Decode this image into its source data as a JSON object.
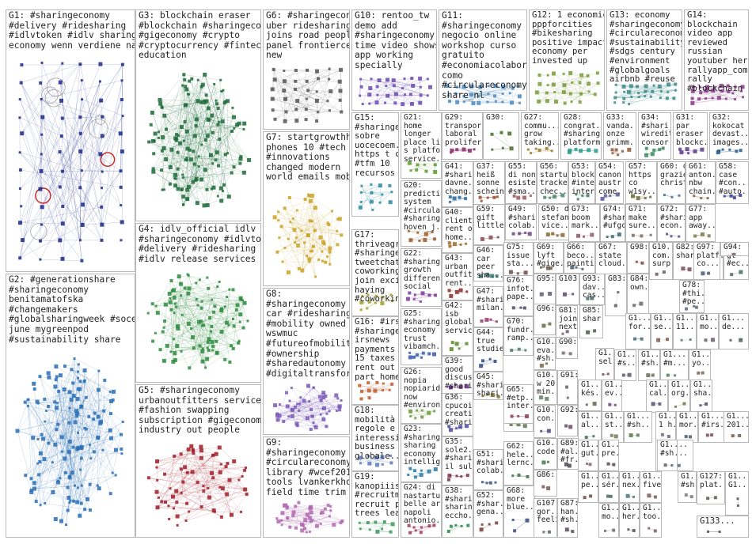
{
  "title": "",
  "groups": [
    {
      "id": "G1",
      "label": "G1: #sharingeconomy\n#delivery #ridesharing\n#idlvtoken #idlv sharing\neconomy wenn verdiene nach",
      "color": "#1a2a8a",
      "nodes": 70,
      "circles": true
    },
    {
      "id": "G2",
      "label": "G2: #generationshare\n#sharingeconomy\nbenitamatofska\n#changemakers\n#globalsharingweek #socent\njune mygreenpod\n#sustainability share",
      "color": "#2a6fb5",
      "nodes": 150,
      "cluster": true
    },
    {
      "id": "G3",
      "label": "G3: blockchain eraser\n#blockchain #sharingeconomy\n#gigeconomy #crypto\n#cryptocurrency #fintech #tech\neducation",
      "color": "#1e6b3a",
      "nodes": 150,
      "cluster": true
    },
    {
      "id": "G4",
      "label": "G4: idlv_official idlv\n#sharingeconomy #idlvtoken\n#delivery #ridesharing project\n#idlv release services",
      "color": "#2e8b3e",
      "nodes": 110,
      "cluster": true
    },
    {
      "id": "G5",
      "label": "G5: #sharingeconomy\nurbanoutfitters service\n#fashion swapping\nsubscription #gigeconomy\nindustry out people",
      "color": "#a01e2a",
      "nodes": 70,
      "cluster": true
    },
    {
      "id": "G6",
      "label": "G6: #sharingeconomy bc\nuber ridesharing\njoins road people\npanel frontiercentre\nnew",
      "color": "#555555",
      "nodes": 40
    },
    {
      "id": "G7",
      "label": "G7: startgrowthhack\nphones 10 #tech\n#innovations\nchanged modern\nworld emails mobile",
      "color": "#c9a227",
      "nodes": 60,
      "cluster": true
    },
    {
      "id": "G8",
      "label": "G8:\n#sharingeconomy\ncar #ridesharing\n#mobility owned\nwswmuc\n#futureofmobility\n#ownership\n#sharedautonomy\n#digitaltransformati...",
      "color": "#7a5ab8",
      "nodes": 55,
      "cluster": true
    },
    {
      "id": "G9",
      "label": "G9:\n#sharingeconomy oh\n#circulareconomy\nlibrary #wcef2019\ntools lvankerkhoven\nfield time trim",
      "color": "#b06ab0",
      "nodes": 45,
      "cluster": true
    },
    {
      "id": "G10",
      "label": "G10: rentoo_tw\ndemo add\n#sharingeconomy\ntime video shows\napp working\nspecially",
      "color": "#6a4ab0",
      "nodes": 35
    },
    {
      "id": "G11",
      "label": "G11:\n#sharingeconomy\nnegocio online\nworkshop curso\ngratuito\n#economiacolabor...\ncomo\n#circulareconomy\nshare_nl",
      "color": "#4a8ac0",
      "nodes": 30
    },
    {
      "id": "G12",
      "label": "G12: 1 economic\npppforcities\n#bikesharing\npositive impact\neconomy per\ninvested up",
      "color": "#7a9a3a",
      "nodes": 30
    },
    {
      "id": "G13",
      "label": "G13: economy\n#sharingeconomy\n#circulareconomy\n#sustainability\n#sdgs century\n#environment\n#globalgoals\nairbnb #reuse",
      "color": "#3a8a8a",
      "nodes": 30
    },
    {
      "id": "G14",
      "label": "G14:\nblockchain\nvideo app\nreviewed\nrussian\nyoutuber here\nrallyapp_com\nrally\n#blockchain",
      "color": "#8a3a8a",
      "nodes": 25
    },
    {
      "id": "G15",
      "label": "G15:\n#sharinge...\nsobre\nuocecoem...\nhttps t co 3\n#tfm 10\nrecursos",
      "color": "#2a8aa0",
      "nodes": 14
    },
    {
      "id": "G16",
      "label": "G16: #irs\n#sharinge...\nirsnews\npayments\n15 taxes\nrent out\npart home",
      "color": "#c05a2a",
      "nodes": 12
    },
    {
      "id": "G17",
      "label": "G17:\nthriveagric\n#sharinge...\ntweetchat\ncoworking...\njoin excited\nhaying\n#coworkin...",
      "color": "#a0a02a",
      "nodes": 12
    },
    {
      "id": "G18",
      "label": "G18:\nmobilità\nregole e\ninteressi di\nbusiness\nglobale...",
      "color": "#5a7ac0",
      "nodes": 10
    },
    {
      "id": "G19",
      "label": "G19:\nkanopiiis\n#recruitm...\nrecruit plant\ntrees learn...",
      "color": "#3a9a5a",
      "nodes": 10
    },
    {
      "id": "G20",
      "label": "G20:\npredictio...\nsystem\n#circular...\n#sharing...\nhoven_j...",
      "color": "#9a5a2a",
      "nodes": 8
    },
    {
      "id": "G21",
      "label": "G21:\nhome\nlonger\nplace live\ns platform\nservice...",
      "color": "#5a9a2a",
      "nodes": 8
    },
    {
      "id": "G22",
      "label": "G22:\n#sharing...\ngrowth\ndifferent\nsocial",
      "color": "#7a3a9a",
      "nodes": 8
    },
    {
      "id": "G23",
      "label": "G23:\n#sharing...\nsharing\neconomy\nintellige...",
      "color": "#2a7aa0",
      "nodes": 8
    },
    {
      "id": "G24",
      "label": "G24: di\nnastartup\nbelle arti\nnapoli\nantonio...",
      "color": "#a03a5a",
      "nodes": 8
    },
    {
      "id": "G25",
      "label": "G25:\n#sharing...\neconomy\ntrust\nvibamch...",
      "color": "#3a5ab0",
      "nodes": 8
    },
    {
      "id": "G26",
      "label": "G26:\nnopia\nnopiaride\nnow\n#environ...",
      "color": "#6a9a3a",
      "nodes": 8
    },
    {
      "id": "G27",
      "label": "G27:\ncommu...\ngrow\ntaking...",
      "color": "#9a7a2a",
      "nodes": 6
    },
    {
      "id": "G28",
      "label": "G28:\ncongrat...\n#sharing...\nplatform...",
      "color": "#2a9a8a",
      "nodes": 6
    },
    {
      "id": "G29",
      "label": "G29:\ntranspor...\nlaboral\nprolifera...",
      "color": "#8a2a6a",
      "nodes": 6
    },
    {
      "id": "G30",
      "label": "G30:",
      "color": "#4a6a2a",
      "nodes": 6
    },
    {
      "id": "G31",
      "label": "G31:\npar\neraser\nblockc...",
      "color": "#5a3a8a",
      "nodes": 6
    },
    {
      "id": "G32",
      "label": "G32:\nkokocat\ndevast...\nimages...",
      "color": "#2a5a8a",
      "nodes": 6
    },
    {
      "id": "G33",
      "label": "G33:\nvanda...\nonze\ngrimm...",
      "color": "#8a5a3a",
      "nodes": 6
    },
    {
      "id": "G34",
      "label": "G34:\n#shari...\nwiredit...\nconsor...",
      "color": "#3a8a5a",
      "nodes": 6
    },
    {
      "id": "G35",
      "label": "G35:\nsole2...\n#shari...\nil sul...",
      "color": "#7a2a4a",
      "nodes": 5
    },
    {
      "id": "G36",
      "label": "G36:\ncpucoin\ncreati...\n#shari...",
      "color": "#4a4aa0",
      "nodes": 5
    },
    {
      "id": "G37",
      "label": "G37:\nheiß\nsonne\nscheint...",
      "color": "#9a4a2a",
      "nodes": 5
    },
    {
      "id": "G38",
      "label": "G38:\n#sharin...\nsharing\neccho...",
      "color": "#2a8a4a",
      "nodes": 5
    },
    {
      "id": "G39",
      "label": "G39:\ngood\ndiscuss\n#shari...",
      "color": "#6a2a8a",
      "nodes": 5
    },
    {
      "id": "G40",
      "label": "G40:\nclient\nrent out\nhome...",
      "color": "#a06a2a",
      "nodes": 5
    },
    {
      "id": "G41",
      "label": "G41:\n#shari...\ndavne...\nchang...",
      "color": "#2a6a9a",
      "nodes": 5
    },
    {
      "id": "G42",
      "label": "G42:\nisb\nglobal\nservic...",
      "color": "#5a8a2a",
      "nodes": 5
    },
    {
      "id": "G43",
      "label": "G43:\nurban\noutfitt...\nrent...",
      "color": "#8a2a2a",
      "nodes": 5
    },
    {
      "id": "G44",
      "label": "G44:\ntrue\nstudie...",
      "color": "#2a4a8a",
      "nodes": 4
    },
    {
      "id": "G45",
      "label": "G45:\n#shari...\nshari...",
      "color": "#7a6a2a",
      "nodes": 4
    },
    {
      "id": "G46",
      "label": "G46:\ncar\npeer\nsha...",
      "color": "#3a7a7a",
      "nodes": 4
    },
    {
      "id": "G47",
      "label": "G47:\n#shari...\nmilan...",
      "color": "#9a3a6a",
      "nodes": 4
    },
    {
      "id": "G48",
      "label": "G48:\nbrookly...\n#shari...",
      "color": "#4a7a3a",
      "nodes": 4
    },
    {
      "id": "G49",
      "label": "G49:\n#shari...\ncolab...",
      "color": "#6a4a7a",
      "nodes": 4
    },
    {
      "id": "G50",
      "label": "G50: di\nstefan...\nvice...",
      "color": "#8a6a3a",
      "nodes": 4
    },
    {
      "id": "G51",
      "label": "G51:\n#shari...\ncolab...",
      "color": "#3a5a7a",
      "nodes": 4
    },
    {
      "id": "G52",
      "label": "G52:\n#shar...\ngena...",
      "color": "#7a3a3a",
      "nodes": 4
    },
    {
      "id": "G53",
      "label": "G53:\nblock...\n#inter...\nintern...",
      "color": "#3a7a5a",
      "nodes": 4
    },
    {
      "id": "G54",
      "label": "G54:\ncanon\naustr...\ncome...",
      "color": "#5a5a9a",
      "nodes": 4
    },
    {
      "id": "G55",
      "label": "G55:\ndi non\nesiste\n#sma...",
      "color": "#9a5a5a",
      "nodes": 4
    },
    {
      "id": "G56",
      "label": "G56:\nstartup\ntracker\nchec...",
      "color": "#4a8a6a",
      "nodes": 4
    },
    {
      "id": "G57",
      "label": "G57:\nhttps t\nco\nw1sy...",
      "color": "#6a6a3a",
      "nodes": 4
    },
    {
      "id": "G58",
      "label": "G58:\ncase\n#con...\n#auto...",
      "color": "#3a3a8a",
      "nodes": 4
    },
    {
      "id": "G59",
      "label": "G59:\ngift\nlittle",
      "color": "#8a4a4a",
      "nodes": 3
    },
    {
      "id": "G60",
      "label": "G60: di e\ngrazie\nchrist...",
      "color": "#4a6a8a",
      "nodes": 3
    },
    {
      "id": "G61",
      "label": "G61:\nanton...\nnbw\nchain...",
      "color": "#7a5a3a",
      "nodes": 3
    },
    {
      "id": "G62",
      "label": "G62:\nhele...\nlernc...",
      "color": "#3a6a4a",
      "nodes": 3
    },
    {
      "id": "G63",
      "label": "G63:\nuchain\nboun...",
      "color": "#6a3a5a",
      "nodes": 3
    },
    {
      "id": "G64",
      "label": "G64:\narticle\nficelé...",
      "color": "#5a7a4a",
      "nodes": 3
    },
    {
      "id": "G65",
      "label": "G65:\n#etp...\ninter...",
      "color": "#8a3a5a",
      "nodes": 3
    },
    {
      "id": "G66",
      "label": "G66:\nbeco...\npainti...",
      "color": "#4a5a6a",
      "nodes": 3
    },
    {
      "id": "G67",
      "label": "G67:\nstate\ncloud...",
      "color": "#7a4a6a",
      "nodes": 3
    },
    {
      "id": "G68",
      "label": "G68:\nmore\nblue...",
      "color": "#3a4a7a",
      "nodes": 3
    },
    {
      "id": "G69",
      "label": "G69:\nlyft\n#gige...",
      "color": "#6a5a4a",
      "nodes": 3
    },
    {
      "id": "G70",
      "label": "G70:\nfundr...\nramp...",
      "color": "#4a7a6a",
      "nodes": 3
    },
    {
      "id": "G71",
      "label": "G71:\nmake\nsure...",
      "color": "#7a6a5a",
      "nodes": 3
    },
    {
      "id": "G72",
      "label": "G72:\n#shari...\necon...",
      "color": "#5a4a8a",
      "nodes": 3
    },
    {
      "id": "G73",
      "label": "G73:\nboom\nmark...",
      "color": "#8a5a6a",
      "nodes": 3
    },
    {
      "id": "G74",
      "label": "G74:\n#shar...\n#ufgc...",
      "color": "#3a6a6a",
      "nodes": 3
    },
    {
      "id": "G75",
      "label": "G75:\nissue\nsta...",
      "color": "#6a4a4a",
      "nodes": 3
    },
    {
      "id": "G76",
      "label": "G76:\ninfot...\npape...",
      "color": "#4a4a6a",
      "nodes": 3
    },
    {
      "id": "G77",
      "label": "G77:\napp\naway...",
      "color": "#7a7a4a",
      "nodes": 3
    },
    {
      "id": "G78",
      "label": "G78:\n#thi...\n#pe...",
      "color": "#5a6a7a",
      "nodes": 3
    },
    {
      "id": "G79",
      "label": "G79:\n#e...",
      "color": "#8a4a6a",
      "nodes": 2
    },
    {
      "id": "G80",
      "label": "G80:\ngt\n#ec...",
      "color": "#4a6a5a",
      "nodes": 2
    },
    {
      "id": "G81",
      "label": "G81:\njoin\nnext...",
      "color": "#6a5a7a",
      "nodes": 2
    },
    {
      "id": "G82",
      "label": "G82:\nshari...",
      "color": "#7a4a5a",
      "nodes": 2
    },
    {
      "id": "G83",
      "label": "G83:",
      "color": "#5a5a5a",
      "nodes": 2
    },
    {
      "id": "G84",
      "label": "G84:\nown...",
      "color": "#6a6a6a",
      "nodes": 2
    },
    {
      "id": "G85",
      "label": "G85:\nshar...",
      "color": "#4a5a4a",
      "nodes": 2
    },
    {
      "id": "G86",
      "label": "G86:",
      "color": "#7a5a5a",
      "nodes": 2
    },
    {
      "id": "G87",
      "label": "G87:\nhan...\n#sh...",
      "color": "#5a4a5a",
      "nodes": 2
    },
    {
      "id": "G88",
      "label": "G88:\nsharin...",
      "color": "#6a7a5a",
      "nodes": 2
    },
    {
      "id": "G89",
      "label": "G89:\n#al...\n#fr...",
      "color": "#4a4a5a",
      "nodes": 2
    },
    {
      "id": "G90",
      "label": "G90:",
      "color": "#7a6a6a",
      "nodes": 2
    },
    {
      "id": "G91",
      "label": "G91:",
      "color": "#5a6a5a",
      "nodes": 2
    },
    {
      "id": "G92",
      "label": "G92:",
      "color": "#6a4a6a",
      "nodes": 2
    },
    {
      "id": "G93",
      "label": "G93:\ndav...\ncas...",
      "color": "#4a6a6a",
      "nodes": 2
    },
    {
      "id": "G94",
      "label": "G94:",
      "color": "#7a5a6a",
      "nodes": 2
    },
    {
      "id": "G95",
      "label": "G95:",
      "color": "#5a5a7a",
      "nodes": 2
    },
    {
      "id": "G96",
      "label": "G96:",
      "color": "#6a6a4a",
      "nodes": 2
    },
    {
      "id": "G97",
      "label": "G97:\nplatf...\nco...",
      "color": "#4a5a7a",
      "nodes": 2
    },
    {
      "id": "G98",
      "label": "G98:",
      "color": "#7a4a4a",
      "nodes": 2
    },
    {
      "id": "G99",
      "label": "G99:\ndes\nrah...",
      "color": "#5a7a5a",
      "nodes": 2
    },
    {
      "id": "G100",
      "label": "G10...\ncom...\nsurp...",
      "color": "#6a5a5a",
      "nodes": 2
    },
    {
      "id": "G101",
      "label": "G10...\ncode",
      "color": "#4a7a4a",
      "nodes": 2
    },
    {
      "id": "G102",
      "label": "G10...\neva...\n#sh...",
      "color": "#7a6a4a",
      "nodes": 2
    },
    {
      "id": "G103",
      "label": "G103:",
      "color": "#5a4a6a",
      "nodes": 2
    },
    {
      "id": "G104",
      "label": "G10...\nw 20\nmin...",
      "color": "#6a7a6a",
      "nodes": 2
    },
    {
      "id": "G105",
      "label": "G10...\ncon...",
      "color": "#4a4a7a",
      "nodes": 2
    },
    {
      "id": "G106",
      "label": "G1...\nlive...",
      "color": "#7a7a6a",
      "nodes": 2
    },
    {
      "id": "G107",
      "label": "G107:\ngor...\nfeeli...",
      "color": "#5a6a6a",
      "nodes": 2
    },
    {
      "id": "G108",
      "label": "G1...\n#r...",
      "color": "#6a4a5a",
      "nodes": 2
    },
    {
      "id": "G109",
      "label": "G1...\nfor...",
      "color": "#4a6a7a",
      "nodes": 2
    },
    {
      "id": "G110",
      "label": "G1...\nse...",
      "color": "#7a5a4a",
      "nodes": 2
    },
    {
      "id": "G111",
      "label": "G1...\n11...",
      "color": "#5a7a6a",
      "nodes": 2
    },
    {
      "id": "G112",
      "label": "G1...\nmo...",
      "color": "#6a5a6a",
      "nodes": 2
    },
    {
      "id": "G113",
      "label": "G1...\nde...",
      "color": "#4a5a5a",
      "nodes": 2
    },
    {
      "id": "G114",
      "label": "G1...\nsel...",
      "color": "#7a4a6a",
      "nodes": 2
    },
    {
      "id": "G115",
      "label": "G1...\n#s...",
      "color": "#5a5a6a",
      "nodes": 2
    },
    {
      "id": "G116",
      "label": "G1...\n#sh...",
      "color": "#6a6a5a",
      "nodes": 2
    },
    {
      "id": "G117",
      "label": "G1...\n#m...",
      "color": "#4a7a5a",
      "nodes": 2
    },
    {
      "id": "G118",
      "label": "G1...\nyo...",
      "color": "#7a6a5a",
      "nodes": 2
    },
    {
      "id": "G119",
      "label": "G1...\ncal...",
      "color": "#5a4a7a",
      "nodes": 2
    },
    {
      "id": "G120",
      "label": "G1...\norg...",
      "color": "#6a7a4a",
      "nodes": 2
    },
    {
      "id": "G121",
      "label": "G1...\nsha...",
      "color": "#4a4a6a",
      "nodes": 2
    },
    {
      "id": "G122",
      "label": "G1...\n#c...",
      "color": "#7a5a7a",
      "nodes": 2
    },
    {
      "id": "G123",
      "label": "G1...\nkés...",
      "color": "#5a6a4a",
      "nodes": 2
    },
    {
      "id": "G124",
      "label": "G1...\nev...",
      "color": "#6a4a7a",
      "nodes": 2
    },
    {
      "id": "G125",
      "label": "G1...\nal...",
      "color": "#4a6a4a",
      "nodes": 2
    },
    {
      "id": "G126",
      "label": "G1...\nst...",
      "color": "#7a7a5a",
      "nodes": 2
    },
    {
      "id": "G127",
      "label": "G127:\nplat...",
      "color": "#5a5a4a",
      "nodes": 2
    },
    {
      "id": "G128",
      "label": "G1...\n1 h...",
      "color": "#6a6a7a",
      "nodes": 2
    },
    {
      "id": "G129",
      "label": "G1...\nmor...",
      "color": "#4a5a6a",
      "nodes": 2
    },
    {
      "id": "G130",
      "label": "G1...\n#irs...",
      "color": "#7a4a5a",
      "nodes": 2
    },
    {
      "id": "G131",
      "label": "G1...\n#sh...",
      "color": "#5a7a4a",
      "nodes": 2
    },
    {
      "id": "G132",
      "label": "G1...\n201...",
      "color": "#6a5a4a",
      "nodes": 2
    },
    {
      "id": "G133",
      "label": "G133...",
      "color": "#4a4a4a",
      "nodes": 2
    },
    {
      "id": "G134",
      "label": "G1...\ngut...",
      "color": "#7a6a7a",
      "nodes": 2
    },
    {
      "id": "G135",
      "label": "G1...\npre...",
      "color": "#5a4a4a",
      "nodes": 2
    },
    {
      "id": "G136",
      "label": "G1...\nfac...",
      "color": "#6a7a7a",
      "nodes": 2
    },
    {
      "id": "G137",
      "label": "G1...\nnex...",
      "color": "#4a7a7a",
      "nodes": 2
    },
    {
      "id": "G138",
      "label": "G1...\nfive...",
      "color": "#7a5a5a",
      "nodes": 2
    },
    {
      "id": "G139",
      "label": "G1...\nch...",
      "color": "#5a6a7a",
      "nodes": 2
    },
    {
      "id": "G140",
      "label": "G1...\npe...",
      "color": "#6a4a4a",
      "nodes": 2
    },
    {
      "id": "G141",
      "label": "G1...\nsér...",
      "color": "#4a6a5a",
      "nodes": 2
    },
    {
      "id": "G142",
      "label": "G1...\n#sh...",
      "color": "#7a7a7a",
      "nodes": 2
    },
    {
      "id": "G143",
      "label": "G1...\n#sh...",
      "color": "#5a5a5a",
      "nodes": 2
    },
    {
      "id": "G144",
      "label": "G1...\nmo...",
      "color": "#6a6a6a",
      "nodes": 2
    },
    {
      "id": "G145",
      "label": "G1...\nher...",
      "color": "#4a5a4a",
      "nodes": 2
    },
    {
      "id": "G146",
      "label": "G1...\ntoo...",
      "color": "#7a5a6a",
      "nodes": 2
    },
    {
      "id": "G147",
      "label": "G1...\nG1...",
      "color": "#5a4a5a",
      "nodes": 2
    }
  ]
}
